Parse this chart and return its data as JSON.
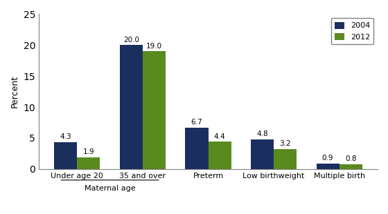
{
  "categories": [
    "Under age 20",
    "35 and over",
    "Preterm",
    "Low birthweight",
    "Multiple birth"
  ],
  "values_2004": [
    4.3,
    20.0,
    6.7,
    4.8,
    0.9
  ],
  "values_2012": [
    1.9,
    19.0,
    4.4,
    3.2,
    0.8
  ],
  "color_2004": "#1a2f5e",
  "color_2012": "#5a8a1e",
  "ylabel": "Percent",
  "ylim": [
    0,
    25
  ],
  "yticks": [
    0,
    5,
    10,
    15,
    20,
    25
  ],
  "legend_labels": [
    "2004",
    "2012"
  ],
  "maternal_age_label": "Maternal age",
  "bar_width": 0.35,
  "figure_width": 5.6,
  "figure_height": 3.1,
  "dpi": 100
}
